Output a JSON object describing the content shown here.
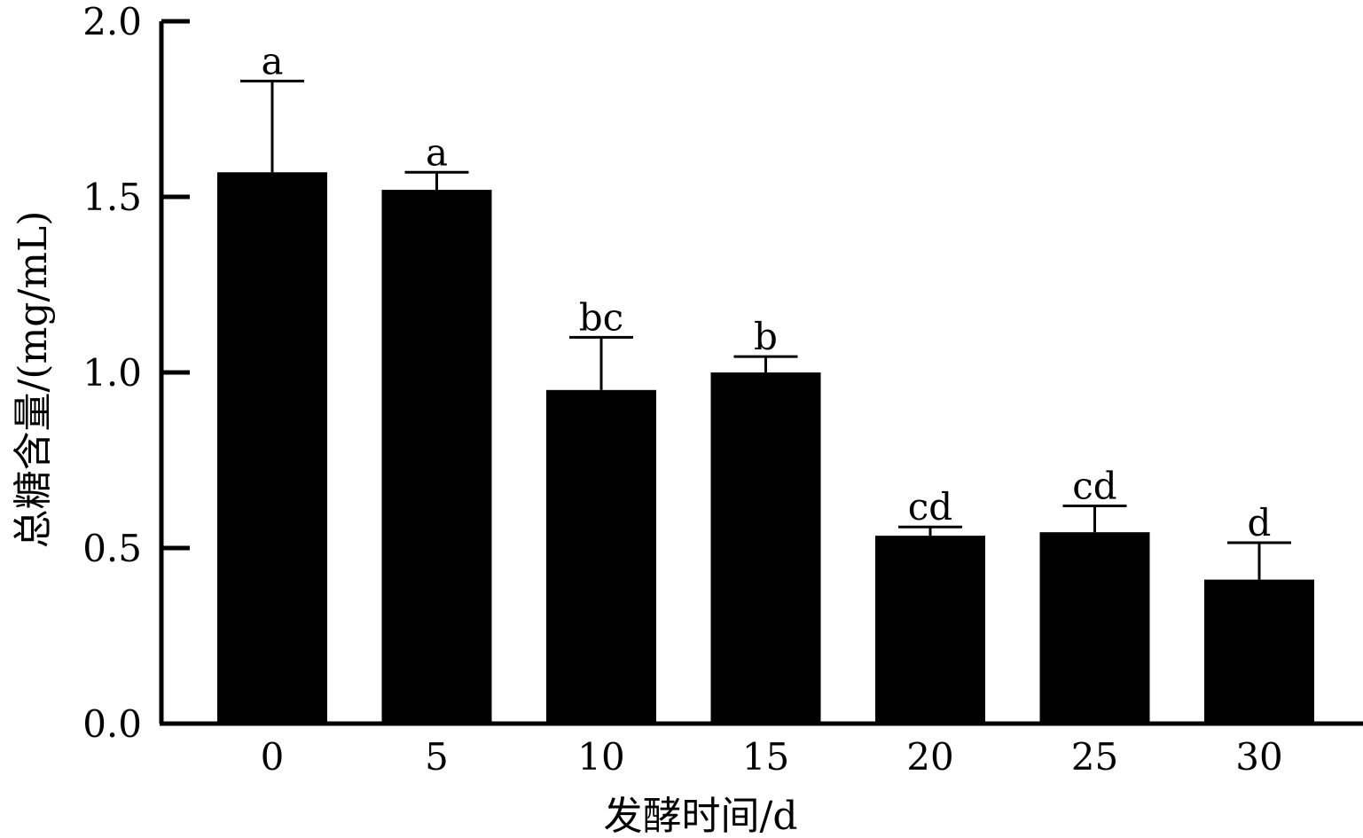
{
  "chart_data": {
    "type": "bar",
    "categories": [
      "0",
      "5",
      "10",
      "15",
      "20",
      "25",
      "30"
    ],
    "values": [
      1.57,
      1.52,
      0.95,
      1.0,
      0.535,
      0.545,
      0.41
    ],
    "error_upper": [
      0.26,
      0.05,
      0.15,
      0.045,
      0.025,
      0.075,
      0.105
    ],
    "significance_labels": [
      "a",
      "a",
      "bc",
      "b",
      "cd",
      "cd",
      "d"
    ],
    "xlabel": "发酵时间/d",
    "ylabel": "总糖含量/(mg/mL)",
    "ylim": [
      0,
      2.0
    ],
    "yticks": [
      "0.0",
      "0.5",
      "1.0",
      "1.5",
      "2.0"
    ],
    "ytick_values": [
      0,
      0.5,
      1.0,
      1.5,
      2.0
    ],
    "bar_color": "#000000",
    "grid": false,
    "legend": "none"
  }
}
